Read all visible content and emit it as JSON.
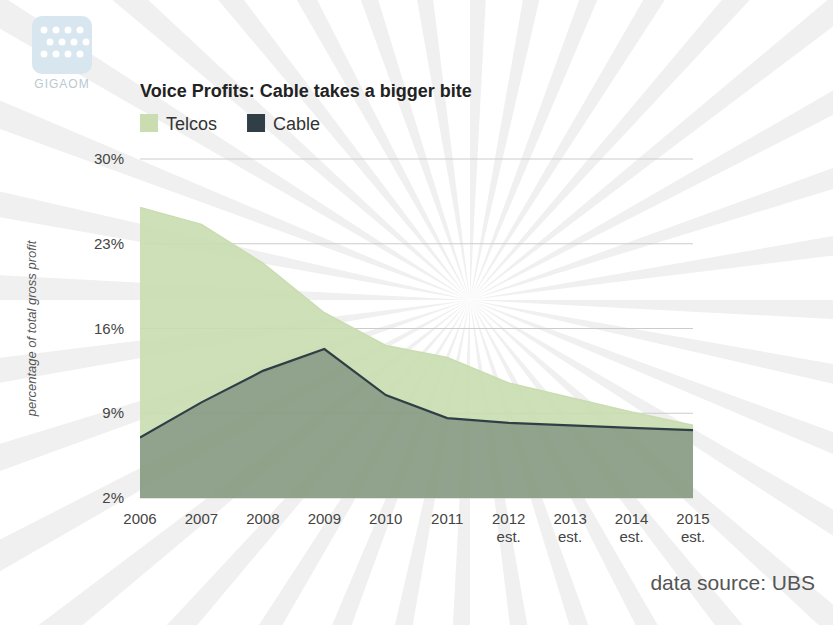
{
  "logo": "GIGAOM",
  "chart_data": {
    "type": "area",
    "title": "Voice Profits: Cable takes a bigger bite",
    "y_label": "percentage of total gross profit",
    "source": "data source: UBS",
    "categories": [
      "2006",
      "2007",
      "2008",
      "2009",
      "2010",
      "2011",
      "2012 est.",
      "2013 est.",
      "2014 est.",
      "2015 est."
    ],
    "series": [
      {
        "name": "Telcos",
        "color": "#c9ddb0",
        "values": [
          26,
          24.6,
          21.4,
          17.3,
          14.6,
          13.6,
          11.5,
          10.3,
          9.1,
          8
        ]
      },
      {
        "name": "Cable",
        "color": "#2f3f45",
        "values": [
          7,
          9.9,
          12.5,
          14.3,
          10.5,
          8.6,
          8.2,
          8.0,
          7.8,
          7.6
        ]
      }
    ],
    "ylim": [
      2,
      30
    ],
    "yticks": [
      {
        "value": 2,
        "label": "2%"
      },
      {
        "value": 9,
        "label": "9%"
      },
      {
        "value": 16,
        "label": "16%"
      },
      {
        "value": 23,
        "label": "23%"
      },
      {
        "value": 30,
        "label": "30%"
      }
    ],
    "grid": true,
    "legend": "top-left"
  }
}
